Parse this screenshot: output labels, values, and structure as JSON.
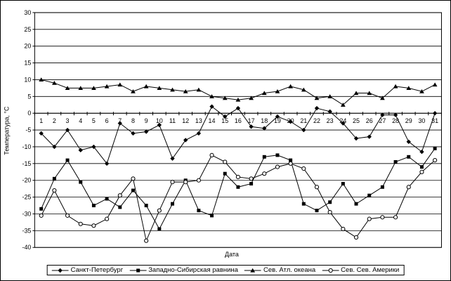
{
  "chart_data": {
    "type": "line",
    "title": "",
    "xlabel": "Дата",
    "ylabel": "Температура, °С",
    "x": [
      1,
      2,
      3,
      4,
      5,
      6,
      7,
      8,
      9,
      10,
      11,
      12,
      13,
      14,
      15,
      16,
      17,
      18,
      19,
      20,
      21,
      22,
      23,
      24,
      25,
      26,
      27,
      28,
      29,
      30,
      31
    ],
    "ylim": [
      -40,
      30
    ],
    "ytick_step": 5,
    "yticks": [
      30,
      25,
      20,
      15,
      10,
      5,
      0,
      -5,
      -10,
      -15,
      -20,
      -25,
      -30,
      -35,
      -40
    ],
    "grid": true,
    "legend_position": "bottom",
    "line_color": "#000000",
    "background": "#ffffff",
    "series": [
      {
        "name": "Санкт-Петербург",
        "marker": "diamond",
        "values": [
          -6,
          -10,
          -5,
          -11,
          -10,
          -15,
          -3,
          -6,
          -5.5,
          -3.5,
          -13.5,
          -8,
          -6,
          2,
          -1,
          1.5,
          -4,
          -4.5,
          -1,
          -2.5,
          -5,
          1.5,
          0.5,
          -3,
          -7.5,
          -7,
          -0.5,
          -0.5,
          -8.5,
          -11.5,
          0
        ]
      },
      {
        "name": "Западно-Сибирская равнина",
        "marker": "square",
        "values": [
          -28.5,
          -19.5,
          -14,
          -20.5,
          -27.5,
          -25.5,
          -28,
          -23,
          -27.5,
          -34.5,
          -27,
          -20,
          -29,
          -30.5,
          -18,
          -22,
          -21,
          -13,
          -12.5,
          -14,
          -27,
          -29,
          -26.5,
          -21,
          -27,
          -24.5,
          -22,
          -14.5,
          -13,
          -16,
          -10.5
        ]
      },
      {
        "name": "Сев. Атл. океана",
        "marker": "triangle",
        "values": [
          10,
          9,
          7.5,
          7.5,
          7.5,
          8,
          8.5,
          6.5,
          8,
          7.5,
          7,
          6.5,
          7,
          5,
          4.5,
          4,
          4.5,
          6,
          6.5,
          8,
          7,
          4.5,
          5,
          2.5,
          6,
          6,
          4.5,
          8,
          7.5,
          6.5,
          8.5
        ]
      },
      {
        "name": "Сев. Сев. Америки",
        "marker": "circle-open",
        "values": [
          -30.5,
          -23,
          -30.5,
          -33,
          -33.5,
          -31.5,
          -24.5,
          -19.5,
          -38,
          -29,
          -20.5,
          -20.5,
          -20,
          -12.5,
          -14.5,
          -19,
          -19.5,
          -18,
          -16,
          -15,
          -16.5,
          -22,
          -29.5,
          -34.5,
          -37,
          -31.5,
          -31,
          -31,
          -22,
          -17.5,
          -14
        ]
      }
    ]
  }
}
